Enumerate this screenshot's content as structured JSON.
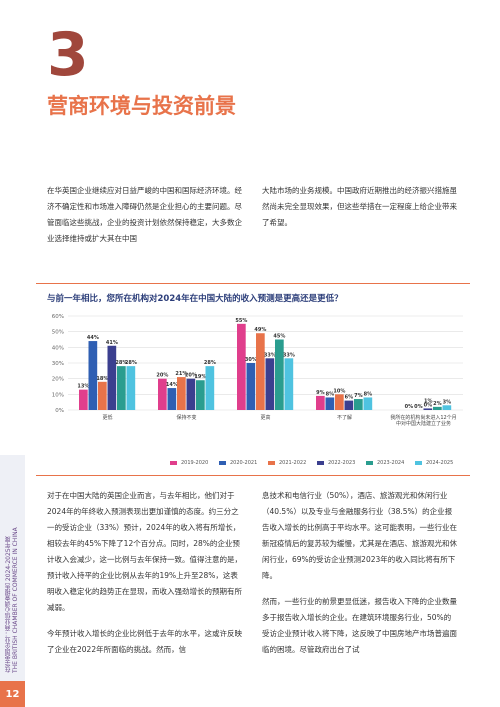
{
  "sidebar": {
    "line1": "在华英国企业：商业信心调查报告 2024-2025年度",
    "line2": "THE BRITISH CHAMBER OF COMMERCE IN CHINA"
  },
  "page_number": "12",
  "chapter": {
    "number": "3",
    "title": "营商环境与投资前景"
  },
  "intro": {
    "left": "在华英国企业继续应对日益严峻的中国和国际经济环境。经济不确定性和市场准入障碍仍然是企业担心的主要问题。尽管面临这些挑战，企业的投资计划依然保持稳定，大多数企业选择维持或扩大其在中国",
    "right": "大陆市场的业务规模。中国政府近期推出的经济振兴措施虽然尚未完全显现效果，但这些举措在一定程度上给企业带来了希望。"
  },
  "chart_data": {
    "type": "bar",
    "title": "与前一年相比，您所在机构对2024年在中国大陆的收入预测是更高还是更低？",
    "categories": [
      "更低",
      "保持不变",
      "更高",
      "不了解",
      "我所在的机构尚未进入12个月中对中国大陆建立了业务"
    ],
    "series": [
      {
        "name": "2019-2020",
        "color": "#e03e8c",
        "values": [
          13,
          20,
          55,
          9,
          0
        ]
      },
      {
        "name": "2020-2021",
        "color": "#2f5fb3",
        "values": [
          44,
          14,
          30,
          8,
          0
        ]
      },
      {
        "name": "2021-2022",
        "color": "#e8734a",
        "values": [
          18,
          21,
          49,
          10,
          0
        ]
      },
      {
        "name": "2022-2023",
        "color": "#3b3f8f",
        "values": [
          41,
          20,
          33,
          6,
          1
        ]
      },
      {
        "name": "2023-2024",
        "color": "#2a9d8f",
        "values": [
          28,
          19,
          45,
          7,
          2
        ]
      },
      {
        "name": "2024-2025",
        "color": "#4fc3e0",
        "values": [
          28,
          28,
          33,
          8,
          3
        ]
      }
    ],
    "value_labels": [
      [
        "13%",
        "44%",
        "18%",
        "41%",
        "28%",
        "28%"
      ],
      [
        "20%",
        "14%",
        "21%",
        "20%",
        "19%",
        "28%"
      ],
      [
        "55%",
        "30%",
        "49%",
        "33%",
        "45%",
        "33%"
      ],
      [
        "9%",
        "8%",
        "10%",
        "6%",
        "7%",
        "8%"
      ],
      [
        "",
        "0%",
        "0%",
        "0%",
        "2%",
        "3%"
      ]
    ],
    "extra_label": "1%",
    "yticks": [
      "60%",
      "50%",
      "40%",
      "30%",
      "20%",
      "10%",
      "0%"
    ],
    "ylim": [
      0,
      60
    ],
    "grid": true,
    "legend": "bottom"
  },
  "body": {
    "left_p1": "对于在中国大陆的英国企业而言，与去年相比，他们对于2024年的年终收入预测表现出更加谨慎的态度。约三分之一的受访企业（33%）预计，2024年的收入将有所增长，相较去年的45%下降了12个百分点。同时，28%的企业预计收入会减少，这一比例与去年保持一致。值得注意的是，预计收入持平的企业比例从去年的19%上升至28%，这表明收入稳定化的趋势正在显现，而收入强劲增长的预期有所减弱。",
    "left_p2": "今年预计收入增长的企业比例低于去年的水平，这或许反映了企业在2022年所面临的挑战。然而，信",
    "right_p1": "息技术和电信行业（50%），酒店、旅游观光和休闲行业（40.5%）以及专业与金融服务行业（38.5%）的企业报告收入增长的比例高于平均水平。这可能表明，一些行业在新冠疫情后的复苏较为缓慢，尤其是在酒店、旅游观光和休闲行业，69%的受访企业预测2023年的收入同比将有所下降。",
    "right_p2": "然而，一些行业的前景更显低迷，报告收入下降的企业数量多于报告收入增长的企业。在建筑环境服务行业，50%的受访企业预计收入将下降，这反映了中国房地产市场普遍面临的困境。尽管政府出台了试"
  }
}
